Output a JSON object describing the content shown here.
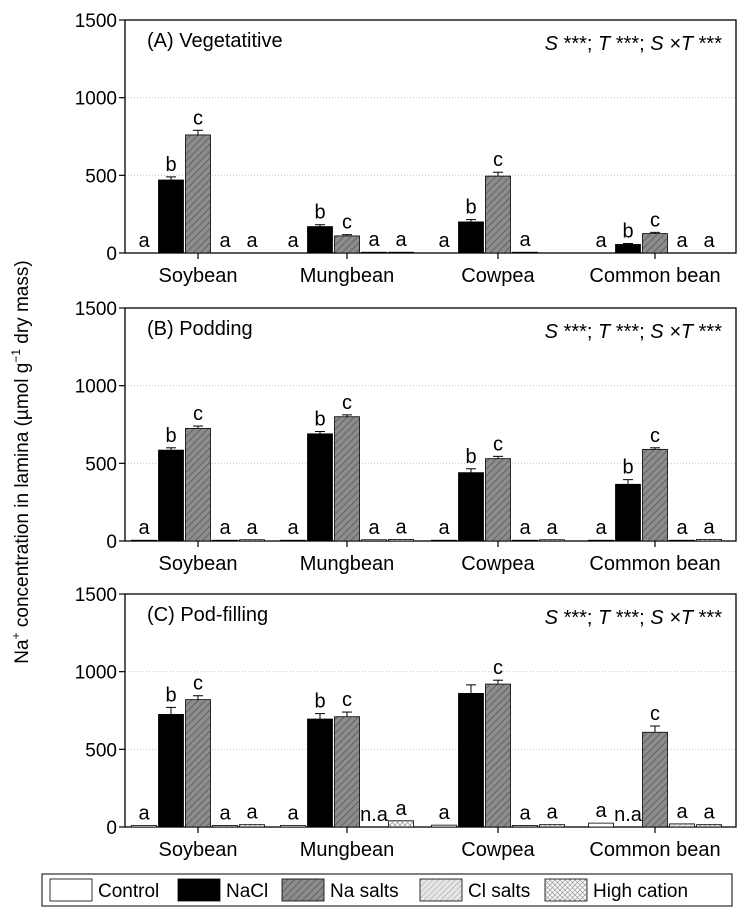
{
  "figure": {
    "y_axis_label": {
      "main": "Na",
      "sup1": "+",
      "mid": " concentration in lamina (µmol g",
      "sup2": "−1",
      "end": " dry mass)"
    },
    "treatments": [
      "Control",
      "NaCl",
      "Na salts",
      "Cl salts",
      "High cation"
    ],
    "treatment_colors": {
      "Control": "#ffffff",
      "NaCl": "#000000",
      "Na salts": "#8c8c8c",
      "Cl salts": "#dcdcdc",
      "High cation": "#f0f0f0"
    }
  },
  "chart_data": [
    {
      "type": "bar",
      "panel": "A",
      "title": "(A) Vegetatitive",
      "stats": {
        "s": "S",
        "s_sig": "***",
        "t": "T",
        "t_sig": "***",
        "st": "S ×T",
        "st_sig": "***"
      },
      "categories": [
        "Soybean",
        "Mungbean",
        "Cowpea",
        "Common bean"
      ],
      "ylim": [
        0,
        1500
      ],
      "yticks": [
        0,
        500,
        1000,
        1500
      ],
      "series": [
        {
          "name": "Control",
          "values": [
            0,
            0,
            0,
            0
          ],
          "errors": [
            0,
            0,
            0,
            0
          ],
          "labels": [
            "a",
            "a",
            "a",
            "a"
          ]
        },
        {
          "name": "NaCl",
          "values": [
            470,
            170,
            200,
            55
          ],
          "errors": [
            20,
            12,
            15,
            6
          ],
          "labels": [
            "b",
            "b",
            "b",
            "b"
          ]
        },
        {
          "name": "Na salts",
          "values": [
            760,
            110,
            495,
            125
          ],
          "errors": [
            30,
            8,
            25,
            8
          ],
          "labels": [
            "c",
            "c",
            "c",
            "c"
          ]
        },
        {
          "name": "Cl salts",
          "values": [
            0,
            5,
            5,
            0
          ],
          "errors": [
            0,
            0,
            0,
            0
          ],
          "labels": [
            "a",
            "a",
            "a",
            "a"
          ]
        },
        {
          "name": "High cation",
          "values": [
            0,
            5,
            0,
            0
          ],
          "errors": [
            0,
            0,
            0,
            0
          ],
          "labels": [
            "a",
            "a",
            "",
            "a"
          ]
        }
      ]
    },
    {
      "type": "bar",
      "panel": "B",
      "title": "(B) Podding",
      "stats": {
        "s": "S",
        "s_sig": "***",
        "t": "T",
        "t_sig": "***",
        "st": "S ×T",
        "st_sig": "***"
      },
      "categories": [
        "Soybean",
        "Mungbean",
        "Cowpea",
        "Common bean"
      ],
      "ylim": [
        0,
        1500
      ],
      "yticks": [
        0,
        500,
        1000,
        1500
      ],
      "series": [
        {
          "name": "Control",
          "values": [
            5,
            5,
            5,
            5
          ],
          "errors": [
            0,
            0,
            0,
            0
          ],
          "labels": [
            "a",
            "a",
            "a",
            "a"
          ]
        },
        {
          "name": "NaCl",
          "values": [
            585,
            690,
            440,
            365
          ],
          "errors": [
            15,
            15,
            25,
            30
          ],
          "labels": [
            "b",
            "b",
            "b",
            "b"
          ]
        },
        {
          "name": "Na salts",
          "values": [
            725,
            800,
            530,
            590
          ],
          "errors": [
            15,
            12,
            15,
            10
          ],
          "labels": [
            "c",
            "c",
            "c",
            "c"
          ]
        },
        {
          "name": "Cl salts",
          "values": [
            5,
            8,
            5,
            5
          ],
          "errors": [
            0,
            0,
            0,
            0
          ],
          "labels": [
            "a",
            "a",
            "a",
            "a"
          ]
        },
        {
          "name": "High cation",
          "values": [
            8,
            10,
            8,
            10
          ],
          "errors": [
            0,
            0,
            0,
            0
          ],
          "labels": [
            "a",
            "a",
            "a",
            "a"
          ]
        }
      ]
    },
    {
      "type": "bar",
      "panel": "C",
      "title": "(C) Pod-filling",
      "stats": {
        "s": "S",
        "s_sig": "***",
        "t": "T",
        "t_sig": "***",
        "st": "S ×T",
        "st_sig": "***"
      },
      "categories": [
        "Soybean",
        "Mungbean",
        "Cowpea",
        "Common bean"
      ],
      "ylim": [
        0,
        1500
      ],
      "yticks": [
        0,
        500,
        1000,
        1500
      ],
      "series": [
        {
          "name": "Control",
          "values": [
            10,
            10,
            12,
            25
          ],
          "errors": [
            0,
            0,
            0,
            0
          ],
          "labels": [
            "a",
            "a",
            "a",
            "a"
          ]
        },
        {
          "name": "NaCl",
          "values": [
            725,
            695,
            860,
            0
          ],
          "errors": [
            45,
            35,
            55,
            0
          ],
          "labels": [
            "b",
            "b",
            "",
            "n.a"
          ]
        },
        {
          "name": "Na salts",
          "values": [
            820,
            710,
            920,
            610
          ],
          "errors": [
            25,
            30,
            25,
            40
          ],
          "labels": [
            "c",
            "c",
            "c",
            "c"
          ]
        },
        {
          "name": "Cl salts",
          "values": [
            10,
            0,
            10,
            20
          ],
          "errors": [
            0,
            0,
            0,
            0
          ],
          "labels": [
            "a",
            "n.a",
            "a",
            "a"
          ]
        },
        {
          "name": "High cation",
          "values": [
            15,
            40,
            15,
            15
          ],
          "errors": [
            0,
            0,
            0,
            0
          ],
          "labels": [
            "a",
            "a",
            "a",
            "a"
          ]
        }
      ]
    }
  ]
}
